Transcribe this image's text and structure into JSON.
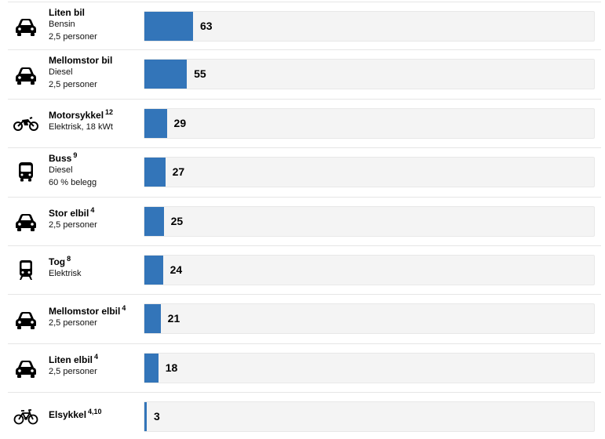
{
  "chart_data": {
    "type": "bar",
    "orientation": "horizontal",
    "bar_color": "#3375b9",
    "track_color": "#f4f4f4",
    "xlim": [
      0,
      63
    ],
    "rows": [
      {
        "name": "Liten bil",
        "note": "",
        "details": [
          "Bensin",
          "2,5 personer"
        ],
        "value": 63,
        "display": "63",
        "icon": "car-icon"
      },
      {
        "name": "Mellomstor bil",
        "note": "",
        "details": [
          "Diesel",
          "2,5 personer"
        ],
        "value": 55,
        "display": "55",
        "icon": "car-icon"
      },
      {
        "name": "Motorsykkel",
        "note": "12",
        "details": [
          "Elektrisk, 18 kWt"
        ],
        "value": 29,
        "display": "29",
        "icon": "motorcycle-icon"
      },
      {
        "name": "Buss",
        "note": "9",
        "details": [
          "Diesel",
          "60 % belegg"
        ],
        "value": 27,
        "display": "27",
        "icon": "bus-icon"
      },
      {
        "name": "Stor elbil",
        "note": "4",
        "details": [
          "2,5 personer"
        ],
        "value": 25,
        "display": "25",
        "icon": "car-icon"
      },
      {
        "name": "Tog",
        "note": "8",
        "details": [
          "Elektrisk"
        ],
        "value": 24,
        "display": "24",
        "icon": "train-icon"
      },
      {
        "name": "Mellomstor elbil",
        "note": "4",
        "details": [
          "2,5 personer"
        ],
        "value": 21,
        "display": "21",
        "icon": "car-icon"
      },
      {
        "name": "Liten elbil",
        "note": "4",
        "details": [
          "2,5 personer"
        ],
        "value": 18,
        "display": "18",
        "icon": "car-icon"
      },
      {
        "name": "Elsykkel",
        "note": "4,10",
        "details": [],
        "value": 3,
        "display": "3",
        "icon": "bicycle-icon"
      }
    ]
  }
}
